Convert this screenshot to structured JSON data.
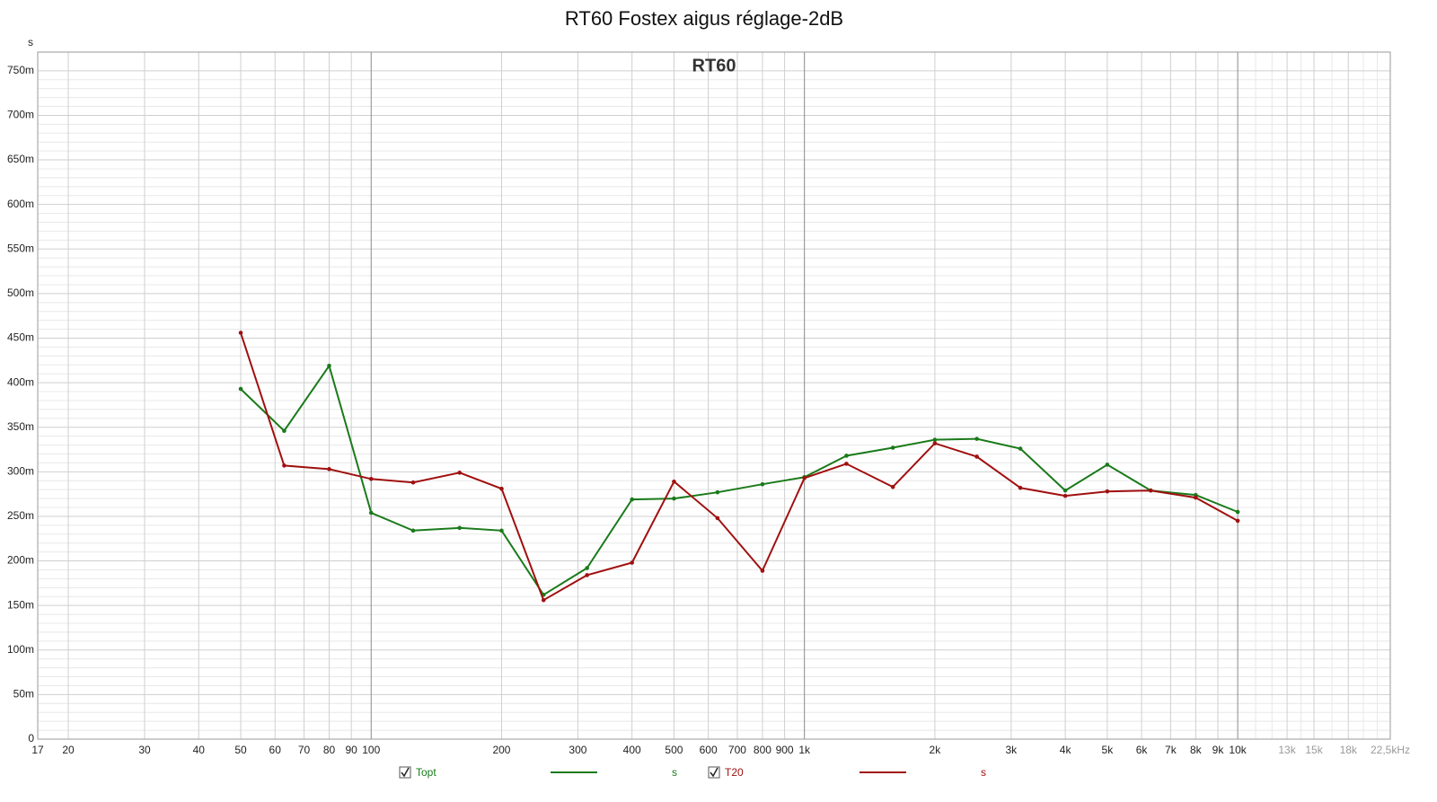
{
  "chart_data": {
    "type": "line",
    "title": "RT60 Fostex aigus réglage-2dB",
    "subtitle": "RT60",
    "y_unit": "s",
    "xscale": "log",
    "grid": true,
    "xlim": [
      17,
      22500
    ],
    "ylim": [
      0,
      0.771
    ],
    "yticks": [
      0,
      {
        "value": 0.05,
        "label": "50m"
      },
      {
        "value": 0.1,
        "label": "100m"
      },
      {
        "value": 0.15,
        "label": "150m"
      },
      {
        "value": 0.2,
        "label": "200m"
      },
      {
        "value": 0.25,
        "label": "250m"
      },
      {
        "value": 0.3,
        "label": "300m"
      },
      {
        "value": 0.35,
        "label": "350m"
      },
      {
        "value": 0.4,
        "label": "400m"
      },
      {
        "value": 0.45,
        "label": "450m"
      },
      {
        "value": 0.5,
        "label": "500m"
      },
      {
        "value": 0.55,
        "label": "550m"
      },
      {
        "value": 0.6,
        "label": "600m"
      },
      {
        "value": 0.65,
        "label": "650m"
      },
      {
        "value": 0.7,
        "label": "700m"
      },
      {
        "value": 0.75,
        "label": "750m"
      }
    ],
    "xticks": [
      17,
      20,
      30,
      40,
      50,
      60,
      70,
      80,
      90,
      100,
      200,
      300,
      400,
      500,
      600,
      700,
      800,
      900,
      {
        "value": 1000,
        "label": "1k"
      },
      {
        "value": 2000,
        "label": "2k"
      },
      {
        "value": 3000,
        "label": "3k"
      },
      {
        "value": 4000,
        "label": "4k"
      },
      {
        "value": 5000,
        "label": "5k"
      },
      {
        "value": 6000,
        "label": "6k"
      },
      {
        "value": 7000,
        "label": "7k"
      },
      {
        "value": 8000,
        "label": "8k"
      },
      {
        "value": 9000,
        "label": "9k"
      },
      {
        "value": 10000,
        "label": "10k"
      },
      {
        "value": 13000,
        "label": "13k"
      },
      {
        "value": 15000,
        "label": "15k"
      },
      {
        "value": 18000,
        "label": "18k"
      },
      {
        "value": 22500,
        "label": "22,5kHz"
      }
    ],
    "x": [
      50,
      63,
      80,
      100,
      125,
      160,
      200,
      250,
      315,
      400,
      500,
      630,
      800,
      1000,
      1250,
      1600,
      2000,
      2500,
      3150,
      4000,
      5000,
      6300,
      8000,
      10000
    ],
    "series": [
      {
        "name": "Topt",
        "unit": "s",
        "color": "#1a7a1a",
        "values": [
          0.393,
          0.346,
          0.419,
          0.254,
          0.234,
          0.237,
          0.234,
          0.162,
          0.192,
          0.269,
          0.27,
          0.277,
          0.286,
          0.294,
          0.318,
          0.327,
          0.336,
          0.337,
          0.326,
          0.279,
          0.308,
          0.279,
          0.274,
          0.255
        ]
      },
      {
        "name": "T20",
        "unit": "s",
        "color": "#a01010",
        "values": [
          0.456,
          0.307,
          0.303,
          0.292,
          0.288,
          0.299,
          0.281,
          0.156,
          0.184,
          0.198,
          0.289,
          0.248,
          0.189,
          0.293,
          0.309,
          0.283,
          0.332,
          0.317,
          0.282,
          0.273,
          0.278,
          0.279,
          0.271,
          0.245
        ]
      }
    ]
  }
}
